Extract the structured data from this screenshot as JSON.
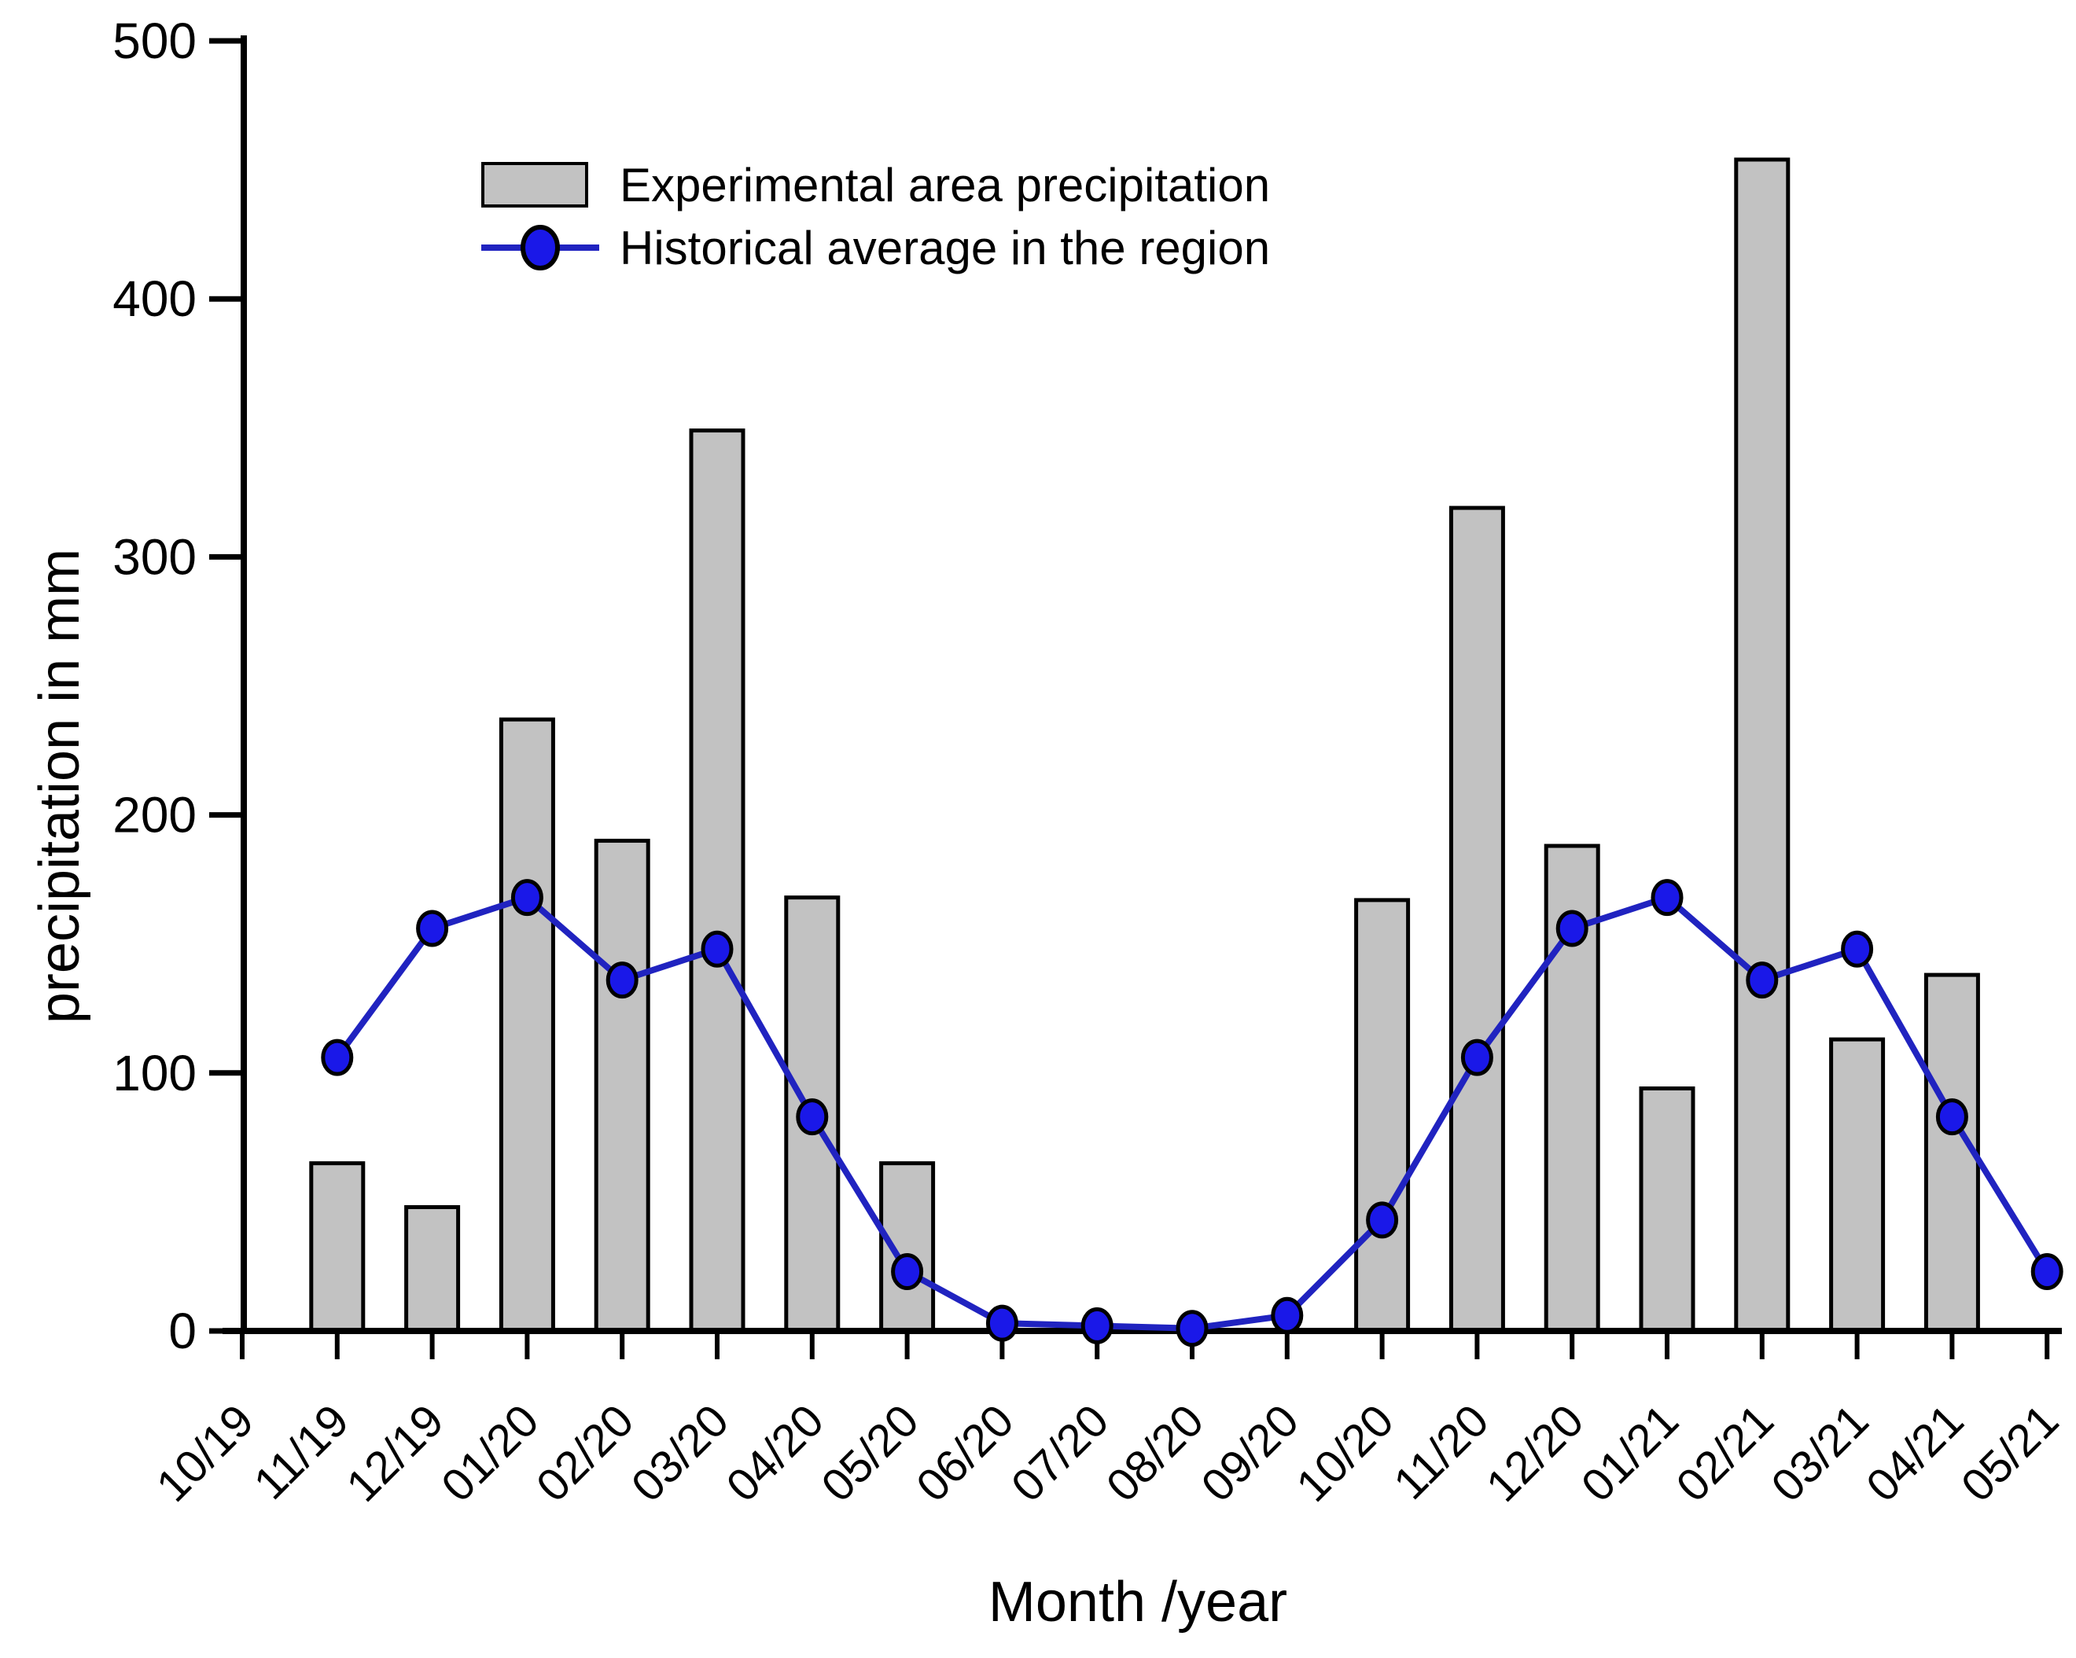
{
  "chart_data": {
    "type": "bar",
    "title": "",
    "xlabel": "Month /year",
    "ylabel": "precipitation in mm",
    "ylim": [
      0,
      500
    ],
    "yticks": [
      0,
      100,
      200,
      300,
      400,
      500
    ],
    "grid": false,
    "legend_position": "upper-left-inside",
    "categories": [
      "10/19",
      "11/19",
      "12/19",
      "01/20",
      "02/20",
      "03/20",
      "04/20",
      "05/20",
      "06/20",
      "07/20",
      "08/20",
      "09/20",
      "10/20",
      "11/20",
      "12/20",
      "01/21",
      "02/21",
      "03/21",
      "04/21",
      "05/21"
    ],
    "series": [
      {
        "name": "Experimental area precipitation",
        "type": "bar",
        "values": [
          null,
          65,
          48,
          237,
          190,
          349,
          168,
          65,
          null,
          null,
          null,
          null,
          167,
          319,
          188,
          94,
          454,
          113,
          138,
          null
        ]
      },
      {
        "name": "Historical average in the region",
        "type": "line",
        "values": [
          null,
          106,
          156,
          168,
          136,
          148,
          83,
          23,
          3,
          2,
          1,
          6,
          43,
          106,
          156,
          168,
          136,
          148,
          83,
          23
        ]
      }
    ],
    "colors": {
      "bar_fill": "#c2c2c2",
      "bar_stroke": "#000000",
      "line": "#2023c0",
      "marker_fill": "#1a18e8",
      "marker_stroke": "#000000",
      "axis": "#000000"
    }
  }
}
